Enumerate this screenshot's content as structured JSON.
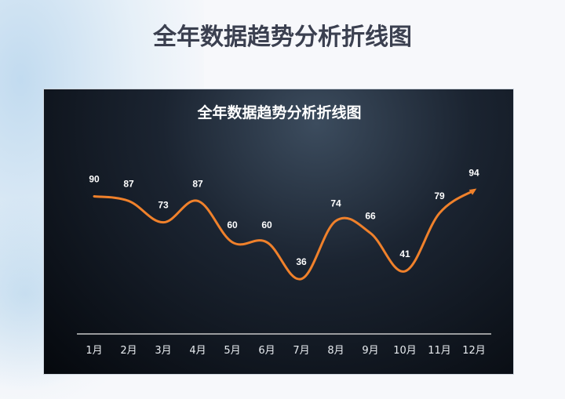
{
  "page_title": "全年数据趋势分析折线图",
  "colors": {
    "line": "#f0812b",
    "background": "#0b1119",
    "text": "#ffffff"
  },
  "chart_data": {
    "type": "line",
    "title": "全年数据趋势分析折线图",
    "categories": [
      "1月",
      "2月",
      "3月",
      "4月",
      "5月",
      "6月",
      "7月",
      "8月",
      "9月",
      "10月",
      "11月",
      "12月"
    ],
    "values": [
      90,
      87,
      73,
      87,
      60,
      60,
      36,
      74,
      66,
      41,
      79,
      94
    ],
    "smooth": true,
    "end_arrow": true,
    "data_labels": true,
    "grid": false,
    "ylim": [
      0,
      100
    ]
  }
}
